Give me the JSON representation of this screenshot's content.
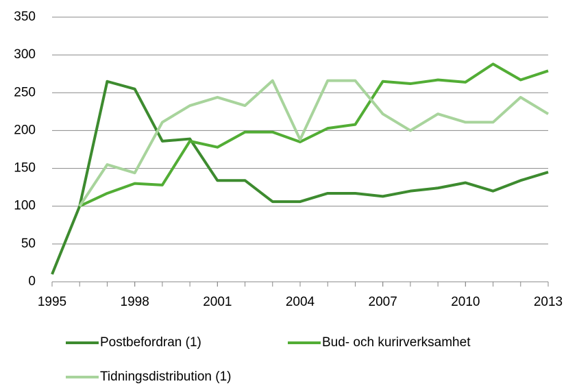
{
  "chart_data": {
    "type": "line",
    "x": [
      1995,
      1996,
      1997,
      1998,
      1999,
      2000,
      2001,
      2002,
      2003,
      2004,
      2005,
      2006,
      2007,
      2008,
      2009,
      2010,
      2011,
      2012,
      2013
    ],
    "series": [
      {
        "name": "Postbefordran (1)",
        "color": "#3d8b2f",
        "values": [
          10,
          100,
          265,
          255,
          186,
          189,
          134,
          134,
          106,
          106,
          117,
          117,
          113,
          120,
          124,
          131,
          120,
          134,
          145
        ]
      },
      {
        "name": "Bud- och kurirverksamhet",
        "color": "#52ad35",
        "values": [
          null,
          100,
          117,
          130,
          128,
          186,
          178,
          198,
          198,
          185,
          203,
          208,
          265,
          262,
          267,
          264,
          288,
          267,
          279
        ]
      },
      {
        "name": "Tidningsdistribution (1)",
        "color": "#a8d49c",
        "values": [
          null,
          100,
          155,
          144,
          211,
          233,
          244,
          233,
          266,
          188,
          266,
          266,
          222,
          200,
          222,
          211,
          211,
          244,
          222
        ]
      }
    ],
    "xlim": [
      1995,
      2013
    ],
    "xticks": [
      1995,
      1998,
      2001,
      2004,
      2007,
      2010,
      2013
    ],
    "ylim": [
      0,
      350
    ],
    "yticks": [
      0,
      50,
      100,
      150,
      200,
      250,
      300,
      350
    ],
    "grid": true,
    "legend": "bottom"
  }
}
